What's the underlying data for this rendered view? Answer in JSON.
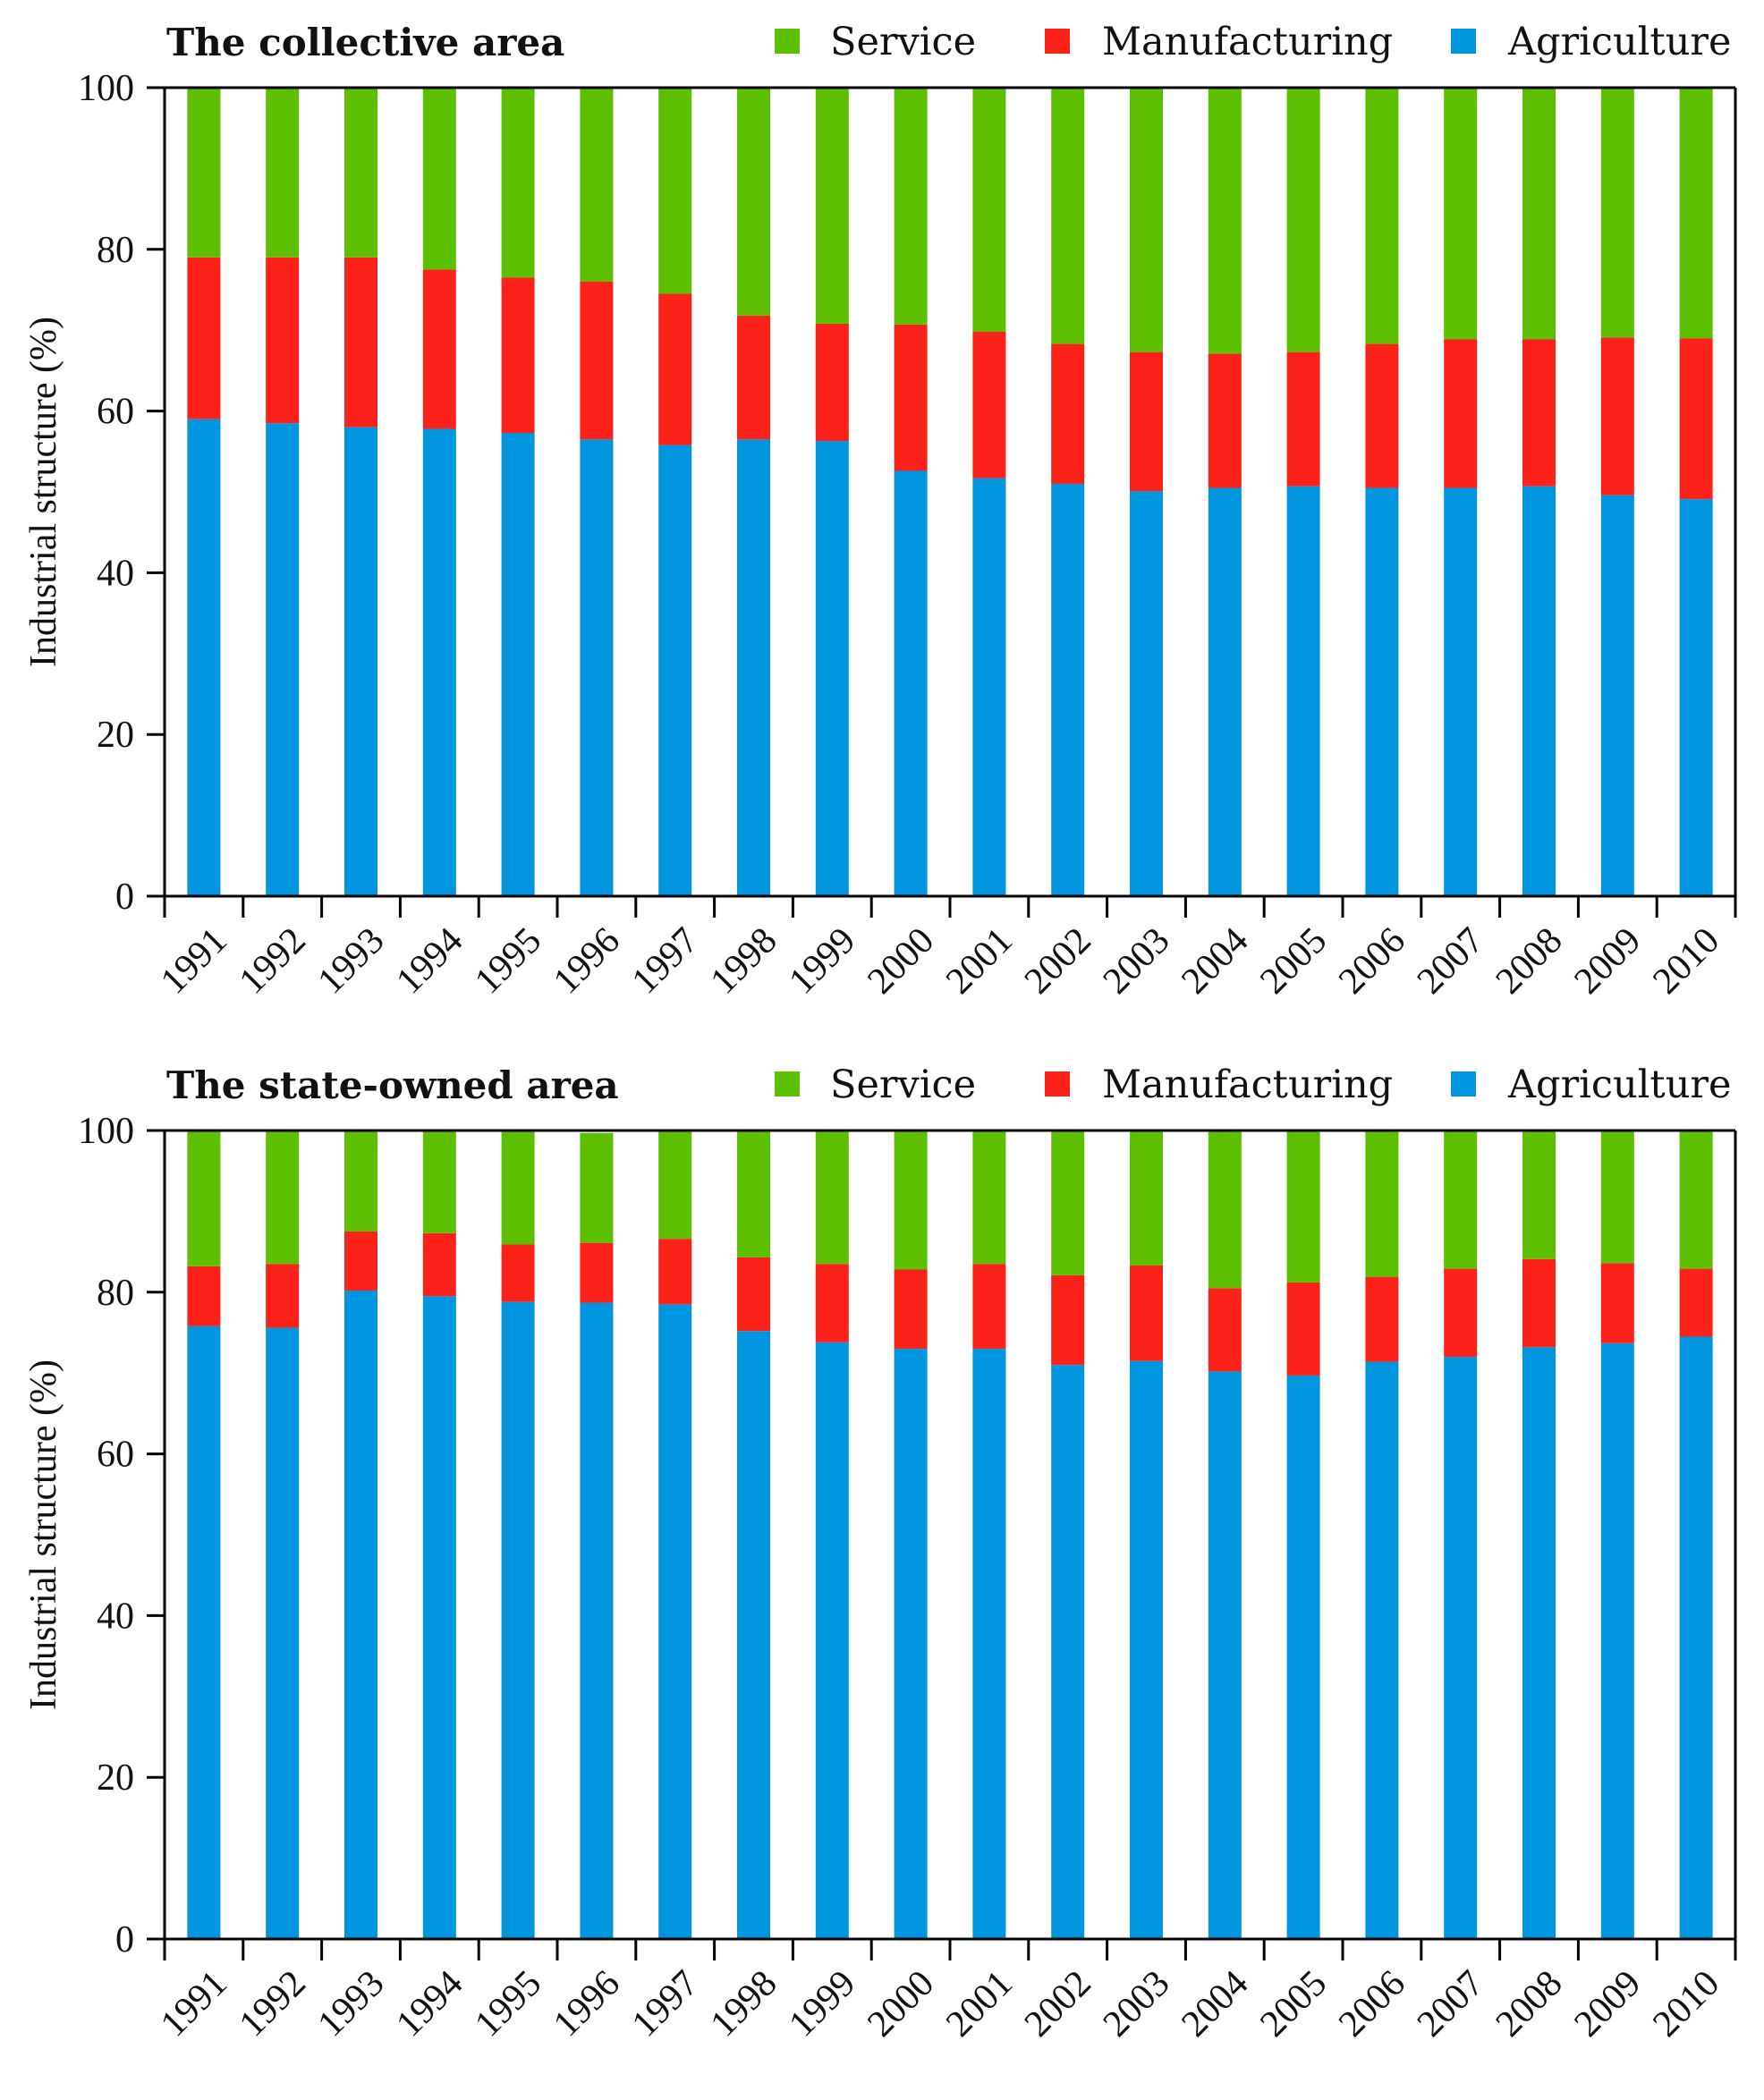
{
  "legend": {
    "service": "Service",
    "manufacturing": "Manufacturing",
    "agriculture": "Agriculture"
  },
  "colors": {
    "service": "#5cbf00",
    "manufacturing": "#fc2119",
    "agriculture": "#0096df",
    "axis": "#000000"
  },
  "chart_data": [
    {
      "type": "bar",
      "stacked": true,
      "title": "The collective area",
      "xlabel": "",
      "ylabel": "Industrial structure (%)",
      "ylim": [
        0,
        100
      ],
      "yticks": [
        "0",
        "20",
        "40",
        "60",
        "80",
        "100"
      ],
      "categories": [
        "1991",
        "1992",
        "1993",
        "1994",
        "1995",
        "1996",
        "1997",
        "1998",
        "1999",
        "2000",
        "2001",
        "2002",
        "2003",
        "2004",
        "2005",
        "2006",
        "2007",
        "2008",
        "2009",
        "2010"
      ],
      "series": [
        {
          "name": "Agriculture",
          "values": [
            59,
            58.5,
            58,
            57.8,
            57.3,
            56.5,
            55.8,
            56.5,
            56.3,
            52.6,
            51.7,
            51,
            50.1,
            50.5,
            50.7,
            50.5,
            50.5,
            50.7,
            49.6,
            49.1
          ]
        },
        {
          "name": "Manufacturing",
          "values": [
            20,
            20.5,
            21,
            19.7,
            19.2,
            19.5,
            18.7,
            15.3,
            14.5,
            18.1,
            18.1,
            17.3,
            17.2,
            16.6,
            16.6,
            17.8,
            18.4,
            18.2,
            19.5,
            19.9
          ]
        },
        {
          "name": "Service",
          "values": [
            21,
            21,
            21,
            22.5,
            23.5,
            24,
            25.5,
            28.2,
            29.2,
            29.3,
            30.2,
            31.7,
            32.7,
            32.9,
            32.7,
            31.7,
            31.1,
            31.1,
            30.9,
            31
          ]
        }
      ]
    },
    {
      "type": "bar",
      "stacked": true,
      "title": "The state-owned area",
      "xlabel": "",
      "ylabel": "Industrial structure (%)",
      "ylim": [
        0,
        100
      ],
      "yticks": [
        "0",
        "20",
        "40",
        "60",
        "80",
        "100"
      ],
      "categories": [
        "1991",
        "1992",
        "1993",
        "1994",
        "1995",
        "1996",
        "1997",
        "1998",
        "1999",
        "2000",
        "2001",
        "2002",
        "2003",
        "2004",
        "2005",
        "2006",
        "2007",
        "2008",
        "2009",
        "2010"
      ],
      "series": [
        {
          "name": "Agriculture",
          "values": [
            75.8,
            75.6,
            80.2,
            79.5,
            78.8,
            78.7,
            78.5,
            75.2,
            73.8,
            73,
            73,
            71,
            71.5,
            70.2,
            69.7,
            71.4,
            72,
            73.2,
            73.7,
            74.5
          ]
        },
        {
          "name": "Manufacturing",
          "values": [
            7.4,
            7.9,
            7.3,
            7.8,
            7.1,
            7.4,
            8.1,
            9.1,
            9.7,
            9.8,
            10.5,
            11.1,
            11.8,
            10.3,
            11.5,
            10.5,
            10.9,
            10.9,
            9.9,
            8.4
          ]
        },
        {
          "name": "Service",
          "values": [
            16.8,
            16.5,
            12.5,
            12.7,
            14.1,
            13.6,
            13.4,
            15.7,
            16.5,
            17.2,
            16.5,
            17.9,
            16.7,
            19.5,
            18.8,
            18.1,
            17.1,
            15.9,
            16.4,
            17.1
          ]
        }
      ]
    }
  ]
}
